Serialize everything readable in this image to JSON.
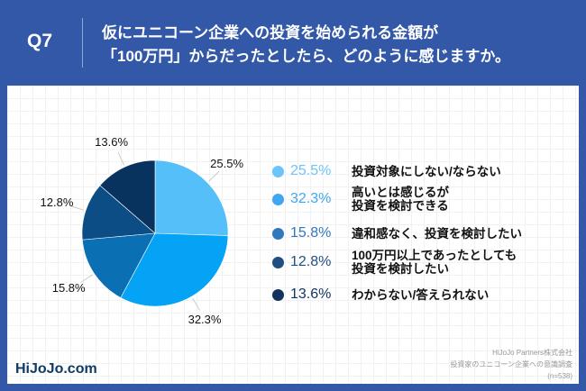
{
  "header": {
    "question": "Q7",
    "title_line1": "仮にユニコーン企業への投資を始められる金額が",
    "title_line2": "「100万円」からだったとしたら、どのように感じますか。"
  },
  "chart_data": {
    "type": "pie",
    "start": "top",
    "direction": "clockwise",
    "categories": [
      "投資対象にしない/ならない",
      "高いとは感じるが\n投資を検討できる",
      "違和感なく、投資を検討したい",
      "100万円以上であったとしても\n投資を検討したい",
      "わからない/答えられない"
    ],
    "values": [
      25.5,
      32.3,
      15.8,
      12.8,
      13.6
    ],
    "labels": [
      "25.5%",
      "32.3%",
      "15.8%",
      "12.8%",
      "13.6%"
    ],
    "colors": [
      "#55bff9",
      "#05a3f5",
      "#0a6fb3",
      "#0b4d84",
      "#08335e"
    ],
    "legend_colors": [
      "#6cc4fa",
      "#3fa6f2",
      "#2f78bc",
      "#1f4f82",
      "#12335e"
    ],
    "legend": "right"
  },
  "footer": {
    "logo": "HiJoJo.com",
    "source_line1": "HiJoJo Partners株式会社",
    "source_line2": "投資家のユニコーン企業への意識調査",
    "source_line3": "(n=538)"
  }
}
